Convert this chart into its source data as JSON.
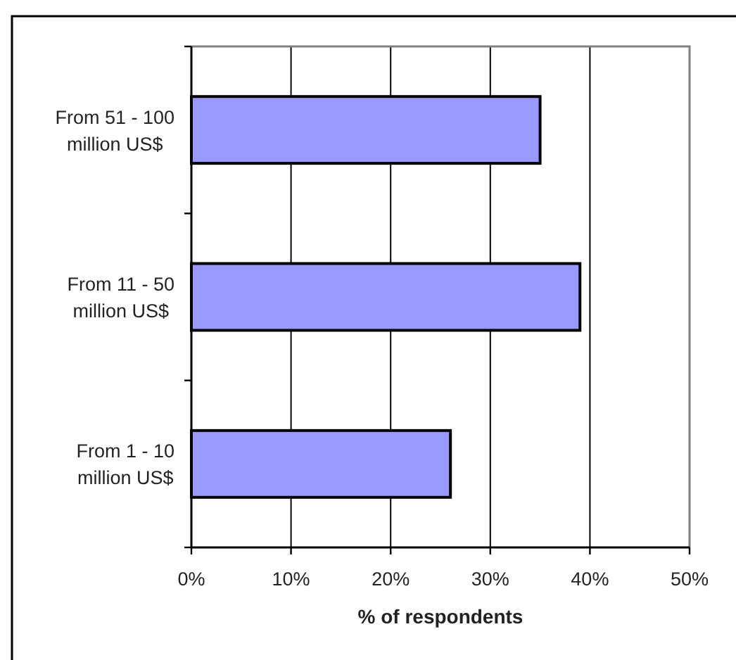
{
  "chart_data": {
    "type": "bar",
    "orientation": "horizontal",
    "categories": [
      "From 51 - 100 million US$",
      "From 11 - 50 million US$",
      "From 1 - 10 million US$"
    ],
    "values": [
      35,
      39,
      26
    ],
    "color": "#9999ff",
    "xlabel": "% of respondents",
    "xlim": [
      0,
      50
    ],
    "xticks": [
      {
        "value": 0,
        "label": "0%"
      },
      {
        "value": 10,
        "label": "10%"
      },
      {
        "value": 20,
        "label": "20%"
      },
      {
        "value": 30,
        "label": "30%"
      },
      {
        "value": 40,
        "label": "40%"
      },
      {
        "value": 50,
        "label": "50%"
      }
    ],
    "grid": "x"
  }
}
